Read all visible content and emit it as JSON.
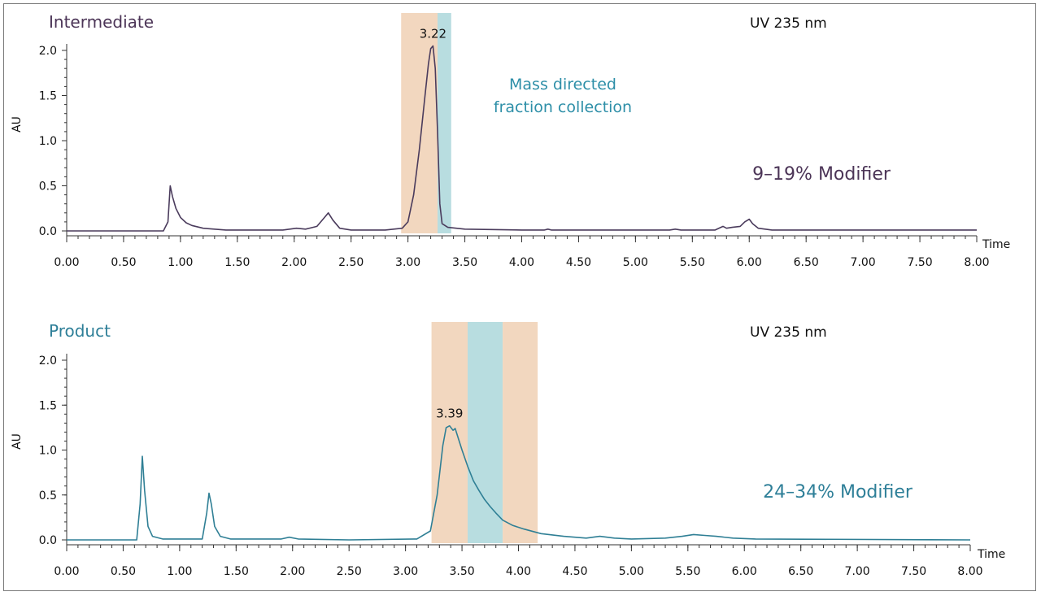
{
  "chart_data": [
    {
      "type": "line",
      "title": "Intermediate",
      "detector": "UV 235 nm",
      "ylabel": "AU",
      "xlabel": "Time",
      "xlim": [
        0,
        8
      ],
      "ylim": [
        0,
        2.0
      ],
      "x_ticks": [
        "0.00",
        "0.50",
        "1.00",
        "1.50",
        "2.00",
        "2.50",
        "3.00",
        "3.50",
        "4.00",
        "4.50",
        "5.00",
        "5.50",
        "6.00",
        "6.50",
        "7.00",
        "7.50",
        "8.00"
      ],
      "y_ticks": [
        "0.0",
        "0.5",
        "1.0",
        "1.5",
        "2.0"
      ],
      "peak_label": "3.22",
      "peak": {
        "x": 3.22,
        "y": 2.05
      },
      "annotation_lines": [
        "Mass directed",
        "fraction collection"
      ],
      "modifier_label": "9–19% Modifier",
      "fraction_bands": [
        {
          "x0": 2.94,
          "x1": 3.26,
          "color": "#f2d7bf"
        },
        {
          "x0": 3.26,
          "x1": 3.38,
          "color": "#b8dde0"
        }
      ],
      "line_color": "#4a3b5c",
      "title_color": "#4c3557",
      "series": [
        {
          "x": [
            0.0,
            0.85,
            0.89,
            0.91,
            0.93,
            0.96,
            1.0,
            1.05,
            1.1,
            1.2,
            1.4,
            1.9,
            2.02,
            2.1,
            2.2,
            2.26,
            2.3,
            2.34,
            2.4,
            2.5,
            2.8,
            2.95,
            3.0,
            3.05,
            3.1,
            3.15,
            3.18,
            3.2,
            3.22,
            3.24,
            3.26,
            3.28,
            3.3,
            3.35,
            3.5,
            4.0,
            4.2,
            4.23,
            4.26,
            4.4,
            5.3,
            5.35,
            5.4,
            5.7,
            5.75,
            5.77,
            5.8,
            5.85,
            5.92,
            5.96,
            6.0,
            6.03,
            6.08,
            6.2,
            8.0
          ],
          "y": [
            0.0,
            0.0,
            0.1,
            0.5,
            0.38,
            0.25,
            0.15,
            0.09,
            0.06,
            0.03,
            0.01,
            0.01,
            0.03,
            0.02,
            0.05,
            0.14,
            0.2,
            0.12,
            0.03,
            0.01,
            0.01,
            0.03,
            0.1,
            0.4,
            0.9,
            1.5,
            1.85,
            2.02,
            2.05,
            1.8,
            1.1,
            0.3,
            0.08,
            0.04,
            0.02,
            0.01,
            0.01,
            0.02,
            0.01,
            0.01,
            0.01,
            0.02,
            0.01,
            0.01,
            0.04,
            0.05,
            0.03,
            0.04,
            0.05,
            0.1,
            0.13,
            0.08,
            0.03,
            0.01,
            0.01
          ]
        }
      ]
    },
    {
      "type": "line",
      "title": "Product",
      "detector": "UV 235 nm",
      "ylabel": "AU",
      "xlabel": "Time",
      "xlim": [
        0,
        8
      ],
      "ylim": [
        0,
        2.0
      ],
      "x_ticks": [
        "0.00",
        "0.50",
        "1.00",
        "1.50",
        "2.00",
        "2.50",
        "3.00",
        "3.50",
        "4.00",
        "4.50",
        "5.00",
        "5.50",
        "6.00",
        "6.50",
        "7.00",
        "7.50",
        "8.00"
      ],
      "y_ticks": [
        "0.0",
        "0.5",
        "1.0",
        "1.5",
        "2.0"
      ],
      "peak_label": "3.39",
      "peak": {
        "x": 3.39,
        "y": 1.27
      },
      "modifier_label": "24–34% Modifier",
      "fraction_bands": [
        {
          "x0": 3.23,
          "x1": 3.55,
          "color": "#f2d7bf"
        },
        {
          "x0": 3.55,
          "x1": 3.86,
          "color": "#b8dde0"
        },
        {
          "x0": 3.86,
          "x1": 4.17,
          "color": "#f2d7bf"
        }
      ],
      "line_color": "#2f7f95",
      "title_color": "#2e7f98",
      "series": [
        {
          "x": [
            0.0,
            0.62,
            0.65,
            0.67,
            0.69,
            0.72,
            0.76,
            0.85,
            1.2,
            1.24,
            1.26,
            1.28,
            1.31,
            1.36,
            1.45,
            1.9,
            1.97,
            2.05,
            2.5,
            3.1,
            3.22,
            3.28,
            3.33,
            3.36,
            3.39,
            3.42,
            3.44,
            3.47,
            3.5,
            3.55,
            3.6,
            3.65,
            3.7,
            3.75,
            3.8,
            3.86,
            3.95,
            4.05,
            4.2,
            4.4,
            4.6,
            4.72,
            4.85,
            5.0,
            5.3,
            5.45,
            5.55,
            5.65,
            5.75,
            5.9,
            6.1,
            8.0
          ],
          "y": [
            0.0,
            0.0,
            0.4,
            0.93,
            0.55,
            0.15,
            0.04,
            0.01,
            0.01,
            0.3,
            0.52,
            0.4,
            0.15,
            0.04,
            0.01,
            0.01,
            0.03,
            0.01,
            0.0,
            0.01,
            0.1,
            0.5,
            1.05,
            1.25,
            1.27,
            1.22,
            1.24,
            1.12,
            1.0,
            0.82,
            0.66,
            0.55,
            0.45,
            0.37,
            0.3,
            0.22,
            0.16,
            0.12,
            0.07,
            0.04,
            0.02,
            0.04,
            0.02,
            0.01,
            0.02,
            0.04,
            0.06,
            0.05,
            0.04,
            0.02,
            0.01,
            0.0
          ]
        }
      ]
    }
  ]
}
